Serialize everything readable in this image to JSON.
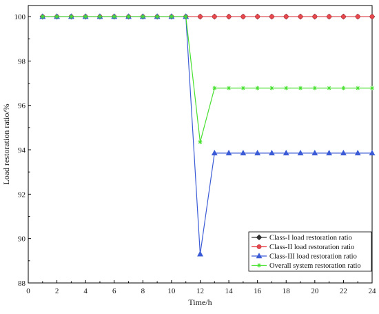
{
  "chart_data": {
    "type": "line",
    "title": "",
    "xlabel": "Time/h",
    "ylabel": "Load restoration ratio/%",
    "xlim": [
      0,
      24
    ],
    "ylim": [
      88,
      100.5
    ],
    "xticks": [
      "0",
      "2",
      "4",
      "6",
      "8",
      "10",
      "12",
      "14",
      "16",
      "18",
      "20",
      "22",
      "24"
    ],
    "yticks": [
      "88",
      "90",
      "92",
      "94",
      "96",
      "98",
      "100"
    ],
    "grid": false,
    "legend_position": "bottom-right",
    "x": [
      1,
      2,
      3,
      4,
      5,
      6,
      7,
      8,
      9,
      10,
      11,
      12,
      13,
      14,
      15,
      16,
      17,
      18,
      19,
      20,
      21,
      22,
      23,
      24
    ],
    "series": [
      {
        "name": "Class-I load restoration ratio",
        "color": "#333333",
        "marker": "diamond",
        "values": [
          100,
          100,
          100,
          100,
          100,
          100,
          100,
          100,
          100,
          100,
          100,
          100,
          100,
          100,
          100,
          100,
          100,
          100,
          100,
          100,
          100,
          100,
          100,
          100
        ]
      },
      {
        "name": "Class-II load restoration ratio",
        "color": "#e8474d",
        "marker": "circle",
        "values": [
          100,
          100,
          100,
          100,
          100,
          100,
          100,
          100,
          100,
          100,
          100,
          100,
          100,
          100,
          100,
          100,
          100,
          100,
          100,
          100,
          100,
          100,
          100,
          100
        ]
      },
      {
        "name": "Class-III  load restoration ratio",
        "color": "#3b5bd6",
        "marker": "triangle",
        "values": [
          100,
          100,
          100,
          100,
          100,
          100,
          100,
          100,
          100,
          100,
          100,
          89.3,
          93.85,
          93.85,
          93.85,
          93.85,
          93.85,
          93.85,
          93.85,
          93.85,
          93.85,
          93.85,
          93.85,
          93.85
        ]
      },
      {
        "name": "Overall system restoration ratio",
        "color": "#47e02f",
        "marker": "star",
        "values": [
          100,
          100,
          100,
          100,
          100,
          100,
          100,
          100,
          100,
          100,
          100,
          94.35,
          96.78,
          96.78,
          96.78,
          96.78,
          96.78,
          96.78,
          96.78,
          96.78,
          96.78,
          96.78,
          96.78,
          96.78
        ]
      }
    ]
  }
}
